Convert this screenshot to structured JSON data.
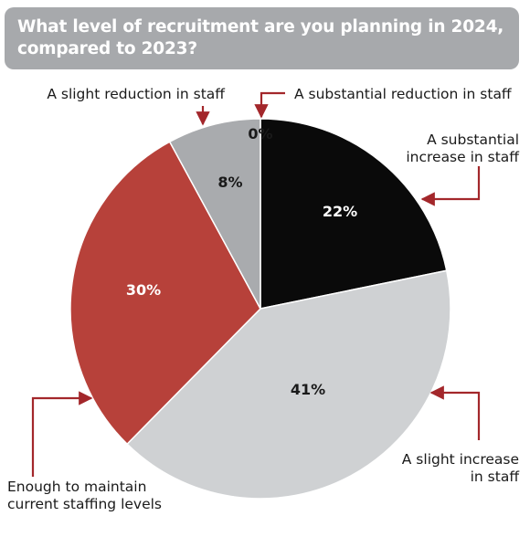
{
  "title": "What level of recruitment are you planning in 2024, compared to 2023?",
  "colors": {
    "title_bg": "#a7a9ac",
    "arrow": "#a3272b"
  },
  "chart_data": {
    "type": "pie",
    "title": "What level of recruitment are you planning in 2024, compared to 2023?",
    "unit": "%",
    "slices": [
      {
        "label_lines": [
          "A substantial",
          "increase in staff"
        ],
        "value": 22,
        "display": "22%",
        "color": "#0a0a0a",
        "text_color": "#ffffff"
      },
      {
        "label_lines": [
          "A slight increase",
          "in staff"
        ],
        "value": 41,
        "display": "41%",
        "color": "#cfd1d3",
        "text_color": "#1a1a1a"
      },
      {
        "label_lines": [
          "Enough to maintain",
          "current staffing levels"
        ],
        "value": 30,
        "display": "30%",
        "color": "#b7413a",
        "text_color": "#ffffff"
      },
      {
        "label_lines": [
          "A slight reduction in staff"
        ],
        "value": 8,
        "display": "8%",
        "color": "#a9abae",
        "text_color": "#1a1a1a"
      },
      {
        "label_lines": [
          "A substantial reduction in staff"
        ],
        "value": 0,
        "display": "0%",
        "color": "#7f7f7f",
        "text_color": "#1a1a1a"
      }
    ]
  }
}
